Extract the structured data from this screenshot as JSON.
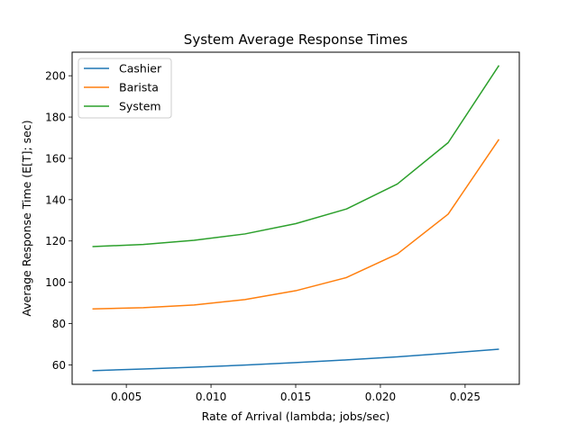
{
  "chart_data": {
    "type": "line",
    "title": "System Average Response Times",
    "xlabel": "Rate of Arrival (lambda; jobs/sec)",
    "ylabel": "Average Response Time (E[T]; sec)",
    "x": [
      0.003,
      0.006,
      0.009,
      0.012,
      0.015,
      0.018,
      0.021,
      0.024,
      0.027
    ],
    "xlim": [
      0.0018,
      0.0282
    ],
    "ylim": [
      50.6,
      211.4
    ],
    "xticks": [
      0.005,
      0.01,
      0.015,
      0.02,
      0.025
    ],
    "xtick_labels": [
      "0.005",
      "0.010",
      "0.015",
      "0.020",
      "0.025"
    ],
    "yticks": [
      60,
      80,
      100,
      120,
      140,
      160,
      180,
      200
    ],
    "ytick_labels": [
      "60",
      "80",
      "100",
      "120",
      "140",
      "160",
      "180",
      "200"
    ],
    "grid": false,
    "legend_position": "top-left",
    "series": [
      {
        "name": "Cashier",
        "color": "#1f77b4",
        "values": [
          57.2,
          58.0,
          58.9,
          59.9,
          61.1,
          62.4,
          63.9,
          65.7,
          67.6
        ]
      },
      {
        "name": "Barista",
        "color": "#ff7f0e",
        "values": [
          87.1,
          87.7,
          89.0,
          91.6,
          95.9,
          102.3,
          113.7,
          133.0,
          169.2
        ]
      },
      {
        "name": "System",
        "color": "#2ca02c",
        "values": [
          117.3,
          118.3,
          120.3,
          123.4,
          128.4,
          135.5,
          147.6,
          167.6,
          205.0
        ]
      }
    ]
  }
}
